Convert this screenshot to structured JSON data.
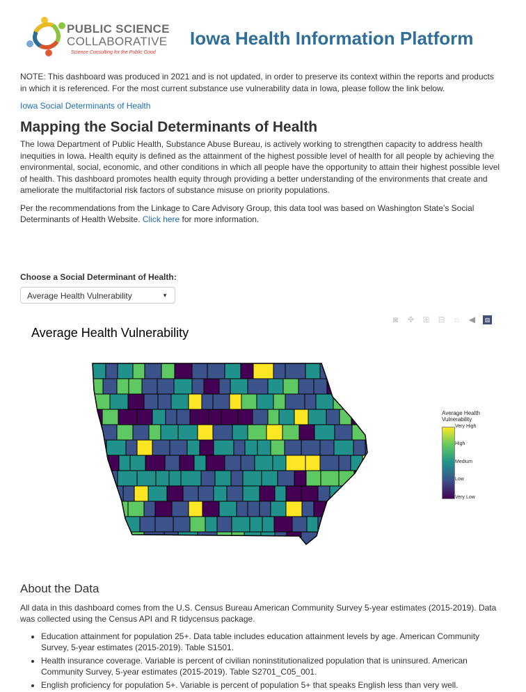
{
  "header": {
    "logo_line1": "PUBLIC SCIENCE",
    "logo_line2": "COLLABORATIVE",
    "logo_tagline": "Science Consulting for the Public Good",
    "title": "Iowa Health Information Platform"
  },
  "note": "NOTE: This dashboard was produced in 2021 and is not updated, in order to preserve its context within the reports and products in which it is referenced. For the most current substance use vulnerability data in Iowa, please follow the link below.",
  "note_link": "Iowa Social Determinants of Health",
  "heading": "Mapping the Social Determinants of Health",
  "intro": "The Iowa Department of Public Health, Substance Abuse Bureau, is actively working to strengthen capacity to address health inequities in Iowa. Health equity is defined as the attainment of the highest possible level of health for all people by achieving the environmental, social, economic, and other conditions in which all people have the opportunity to attain their highest possible level of health. This dashboard promotes health equity through providing a better understanding of the environments that create and ameliorate the multifactorial risk factors of substance misuse on priority populations.",
  "rec_before": "Per the recommendations from the Linkage to Care Advisory Group, this data tool was based on Washington State’s Social Determinants of Health Website. ",
  "rec_link": "Click here",
  "rec_after": " for more information.",
  "selector": {
    "label": "Choose a Social Determinant of Health:",
    "value": "Average Health Vulnerability"
  },
  "modebar": [
    "camera-icon",
    "pan-icon",
    "zoom-in-icon",
    "zoom-out-icon",
    "home-icon",
    "hover-icon",
    "plotly-logo-icon"
  ],
  "plot": {
    "title": "Average Health Vulnerability",
    "legend_title_1": "Average Health",
    "legend_title_2": "Vulnerability",
    "legend_ticks": [
      "Very High",
      "High",
      "Medium",
      "Low",
      "Very Low"
    ],
    "colorscale": [
      "#440154",
      "#3b528b",
      "#21918c",
      "#5ec962",
      "#fde725"
    ]
  },
  "about": {
    "heading": "About the Data",
    "text": "All data in this dashboard comes from the U.S. Census Bureau American Community Survey 5-year estimates (2015-2019). Data was collected using the Census API and R tidycensus package.",
    "items": [
      "Education attainment for population 25+. Data table includes education attainment levels by age. American Community Survey, 5-year estimates (2015-2019). Table S1501.",
      "Health insurance coverage. Variable is percent of civilian noninstitutionalized population that is uninsured. American Community Survey, 5-year estimates (2015-2019). Table S2701_C05_001.",
      "English proficiency for population 5+. Variable is percent of population 5+ that speaks English less than very well."
    ]
  }
}
